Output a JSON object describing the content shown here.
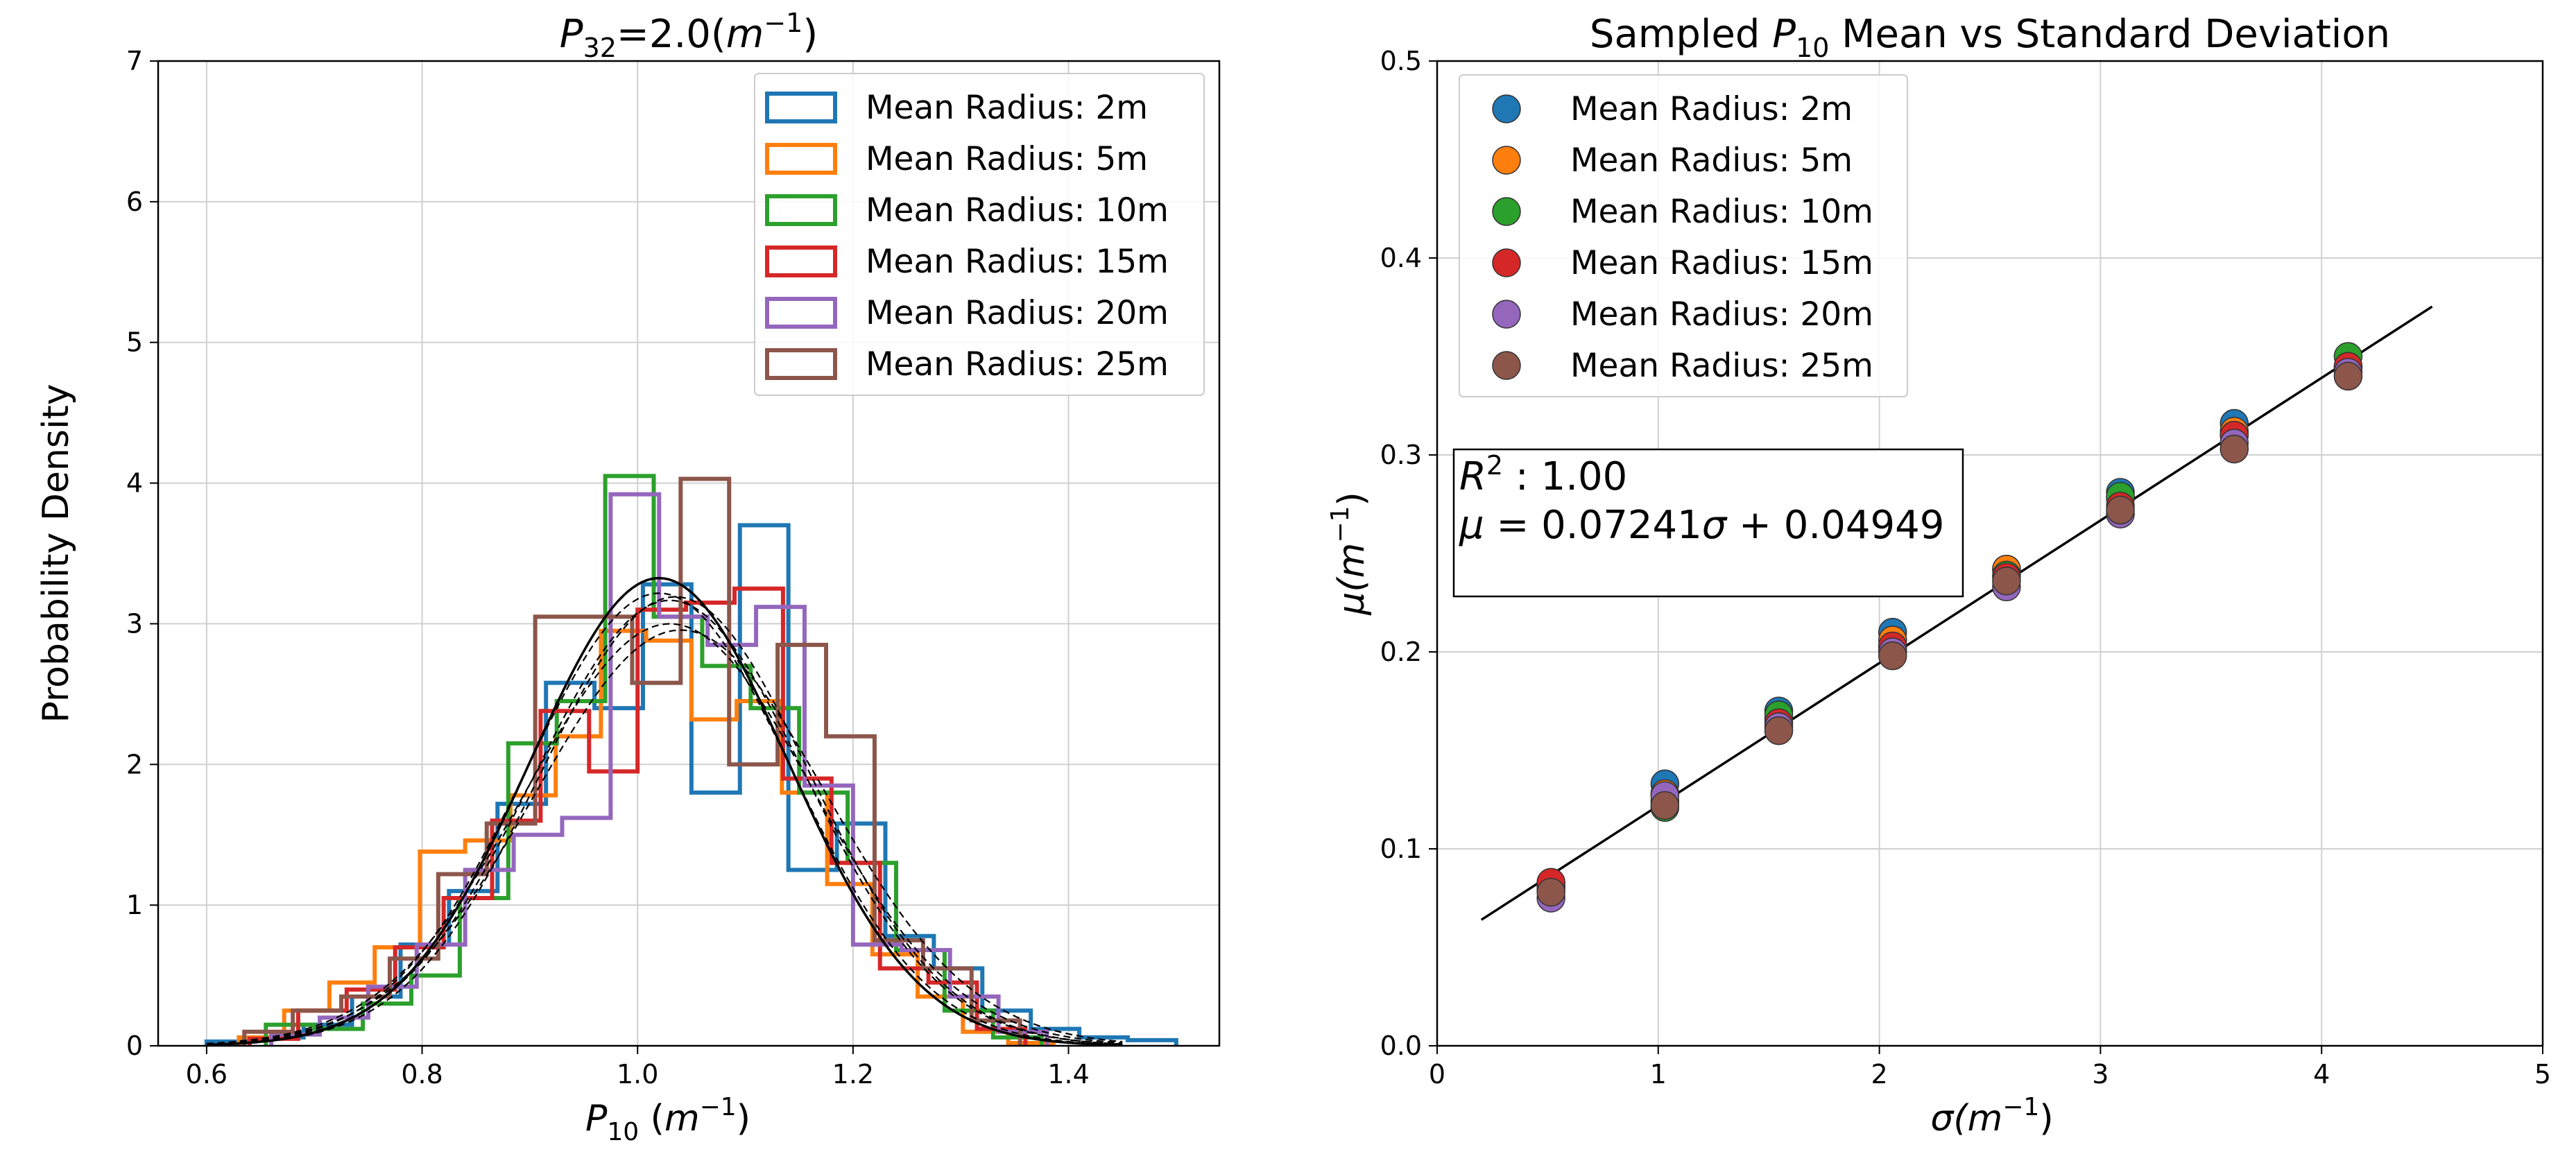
{
  "colors": {
    "blue": "#1f77b4",
    "orange": "#ff7f0e",
    "green": "#2ca02c",
    "red": "#d62728",
    "purple": "#9467bd",
    "brown": "#8c564b",
    "grid": "#d0d0d0",
    "fit_line": "#000000"
  },
  "chart_data": [
    {
      "type": "histogram",
      "title": "P32=2.0(m^-1)",
      "title_parts": {
        "main": "P",
        "sub": "32",
        "rest": "=2.0(",
        "unit": "m",
        "sup": "−1",
        "close": ")"
      },
      "xlabel": "P10 (m^-1)",
      "xlabel_parts": {
        "main": "P",
        "sub": "10",
        "rest": " (",
        "unit": "m",
        "sup": "−1",
        "close": ")"
      },
      "ylabel": "Probability Density",
      "xlim": [
        0.555,
        1.54
      ],
      "ylim": [
        0,
        7
      ],
      "xticks": [
        0.6,
        0.8,
        1.0,
        1.2,
        1.4
      ],
      "xtick_labels": [
        "0.6",
        "0.8",
        "1.0",
        "1.2",
        "1.4"
      ],
      "yticks": [
        0,
        1,
        2,
        3,
        4,
        5,
        6,
        7
      ],
      "ytick_labels": [
        "0",
        "1",
        "2",
        "3",
        "4",
        "5",
        "6",
        "7"
      ],
      "grid": true,
      "legend_position": "top-right",
      "legend": [
        "Mean Radius: 2m",
        "Mean Radius: 5m",
        "Mean Radius: 10m",
        "Mean Radius: 15m",
        "Mean Radius: 20m",
        "Mean Radius: 25m"
      ],
      "series": [
        {
          "name": "Mean Radius: 2m",
          "color_key": "blue",
          "edges": [
            0.6,
            0.645,
            0.69,
            0.735,
            0.78,
            0.825,
            0.87,
            0.915,
            0.96,
            1.005,
            1.05,
            1.095,
            1.14,
            1.185,
            1.23,
            1.275,
            1.32,
            1.365,
            1.41,
            1.455,
            1.5
          ],
          "density": [
            0.03,
            0.06,
            0.15,
            0.35,
            0.72,
            1.1,
            1.72,
            2.58,
            2.4,
            3.28,
            1.8,
            3.7,
            1.25,
            1.58,
            0.78,
            0.55,
            0.25,
            0.12,
            0.06,
            0.04
          ]
        },
        {
          "name": "Mean Radius: 5m",
          "color_key": "orange",
          "edges": [
            0.63,
            0.672,
            0.714,
            0.756,
            0.798,
            0.84,
            0.882,
            0.924,
            0.966,
            1.008,
            1.05,
            1.092,
            1.134,
            1.176,
            1.218,
            1.26,
            1.302,
            1.344,
            1.386
          ],
          "density": [
            0.06,
            0.25,
            0.45,
            0.7,
            1.38,
            1.46,
            1.78,
            2.2,
            2.95,
            2.88,
            2.32,
            2.45,
            1.8,
            1.15,
            0.65,
            0.35,
            0.1,
            0.02
          ]
        },
        {
          "name": "Mean Radius: 10m",
          "color_key": "green",
          "edges": [
            0.655,
            0.7,
            0.745,
            0.79,
            0.835,
            0.88,
            0.925,
            0.97,
            1.015,
            1.06,
            1.105,
            1.15,
            1.195,
            1.24,
            1.285,
            1.33,
            1.375
          ],
          "density": [
            0.15,
            0.12,
            0.3,
            0.5,
            1.05,
            2.15,
            2.45,
            4.05,
            3.05,
            2.7,
            2.4,
            1.8,
            1.3,
            0.68,
            0.25,
            0.06
          ]
        },
        {
          "name": "Mean Radius: 15m",
          "color_key": "red",
          "edges": [
            0.64,
            0.685,
            0.73,
            0.775,
            0.82,
            0.865,
            0.91,
            0.955,
            1.0,
            1.045,
            1.09,
            1.135,
            1.18,
            1.225,
            1.27,
            1.315,
            1.36
          ],
          "density": [
            0.05,
            0.25,
            0.4,
            0.7,
            1.05,
            1.6,
            2.38,
            1.95,
            3.1,
            3.15,
            3.25,
            1.9,
            1.3,
            0.55,
            0.45,
            0.12
          ]
        },
        {
          "name": "Mean Radius: 20m",
          "color_key": "purple",
          "edges": [
            0.66,
            0.705,
            0.75,
            0.795,
            0.84,
            0.885,
            0.93,
            0.975,
            1.02,
            1.065,
            1.11,
            1.155,
            1.2,
            1.245,
            1.29,
            1.335,
            1.38
          ],
          "density": [
            0.08,
            0.2,
            0.42,
            0.72,
            1.25,
            1.5,
            1.62,
            3.92,
            3.05,
            2.85,
            3.12,
            1.85,
            0.72,
            0.68,
            0.35,
            0.1
          ]
        },
        {
          "name": "Mean Radius: 25m",
          "color_key": "brown",
          "edges": [
            0.635,
            0.68,
            0.725,
            0.77,
            0.815,
            0.86,
            0.905,
            0.95,
            0.995,
            1.04,
            1.085,
            1.13,
            1.175,
            1.22,
            1.265,
            1.31,
            1.355
          ],
          "density": [
            0.1,
            0.25,
            0.35,
            0.62,
            1.22,
            1.58,
            3.05,
            3.05,
            2.58,
            4.03,
            2.0,
            2.85,
            2.2,
            0.75,
            0.55,
            0.18
          ]
        }
      ],
      "fit_curves": [
        {
          "mean": 1.02,
          "std": 0.12,
          "style": "solid"
        },
        {
          "mean": 1.035,
          "std": 0.125,
          "style": "dashed"
        },
        {
          "mean": 1.02,
          "std": 0.124,
          "style": "dashed"
        },
        {
          "mean": 1.03,
          "std": 0.126,
          "style": "dashed"
        },
        {
          "mean": 1.03,
          "std": 0.133,
          "style": "dashed"
        },
        {
          "mean": 1.04,
          "std": 0.135,
          "style": "dashed"
        }
      ]
    },
    {
      "type": "scatter",
      "title": "Sampled P10 Mean vs Standard Deviation",
      "title_parts": {
        "pre": "Sampled ",
        "main": "P",
        "sub": "10",
        "post": " Mean vs Standard Deviation"
      },
      "xlabel": "σ(m^-1)",
      "xlabel_parts": {
        "main": "σ(",
        "unit": "m",
        "sup": "−1",
        "close": ")"
      },
      "ylabel": "μ(m^-1)",
      "ylabel_parts": {
        "main": "μ(",
        "unit": "m",
        "sup": "−1",
        "close": ")"
      },
      "xlim": [
        0,
        5
      ],
      "ylim": [
        0,
        0.5
      ],
      "xticks": [
        0,
        1,
        2,
        3,
        4,
        5
      ],
      "xtick_labels": [
        "0",
        "1",
        "2",
        "3",
        "4",
        "5"
      ],
      "yticks": [
        0,
        0.1,
        0.2,
        0.3,
        0.4,
        0.5
      ],
      "ytick_labels": [
        "0.0",
        "0.1",
        "0.2",
        "0.3",
        "0.4",
        "0.5"
      ],
      "grid": true,
      "legend_position": "top-left",
      "legend": [
        "Mean Radius: 2m",
        "Mean Radius: 5m",
        "Mean Radius: 10m",
        "Mean Radius: 15m",
        "Mean Radius: 20m",
        "Mean Radius: 25m"
      ],
      "x": [
        0.515,
        1.03,
        1.545,
        2.06,
        2.575,
        3.09,
        3.605,
        4.12
      ],
      "series": [
        {
          "name": "Mean Radius: 2m",
          "color_key": "blue",
          "y": [
            0.082,
            0.133,
            0.17,
            0.21,
            0.242,
            0.281,
            0.316,
            0.345
          ]
        },
        {
          "name": "Mean Radius: 5m",
          "color_key": "orange",
          "y": [
            0.08,
            0.128,
            0.166,
            0.206,
            0.242,
            0.278,
            0.312,
            0.344
          ]
        },
        {
          "name": "Mean Radius: 10m",
          "color_key": "green",
          "y": [
            0.081,
            0.121,
            0.168,
            0.202,
            0.239,
            0.279,
            0.31,
            0.35
          ]
        },
        {
          "name": "Mean Radius: 15m",
          "color_key": "red",
          "y": [
            0.083,
            0.124,
            0.164,
            0.203,
            0.238,
            0.274,
            0.31,
            0.345
          ]
        },
        {
          "name": "Mean Radius: 20m",
          "color_key": "purple",
          "y": [
            0.075,
            0.127,
            0.162,
            0.2,
            0.233,
            0.27,
            0.306,
            0.342
          ]
        },
        {
          "name": "Mean Radius: 25m",
          "color_key": "brown",
          "y": [
            0.078,
            0.122,
            0.16,
            0.198,
            0.236,
            0.272,
            0.303,
            0.34
          ]
        }
      ],
      "fit": {
        "slope": 0.07241,
        "intercept": 0.04949,
        "x_range": [
          0.2,
          4.5
        ],
        "r2_label": "R^2 : 1.00",
        "r2_parts": {
          "main": "R",
          "sup": "2",
          "rest": " : 1.00"
        },
        "equation_label": "μ = 0.07241σ + 0.04949",
        "equation_parts": {
          "lead": "μ",
          "rest": " = 0.07241",
          "sigma": "σ",
          "tail": " + 0.04949"
        }
      }
    }
  ]
}
